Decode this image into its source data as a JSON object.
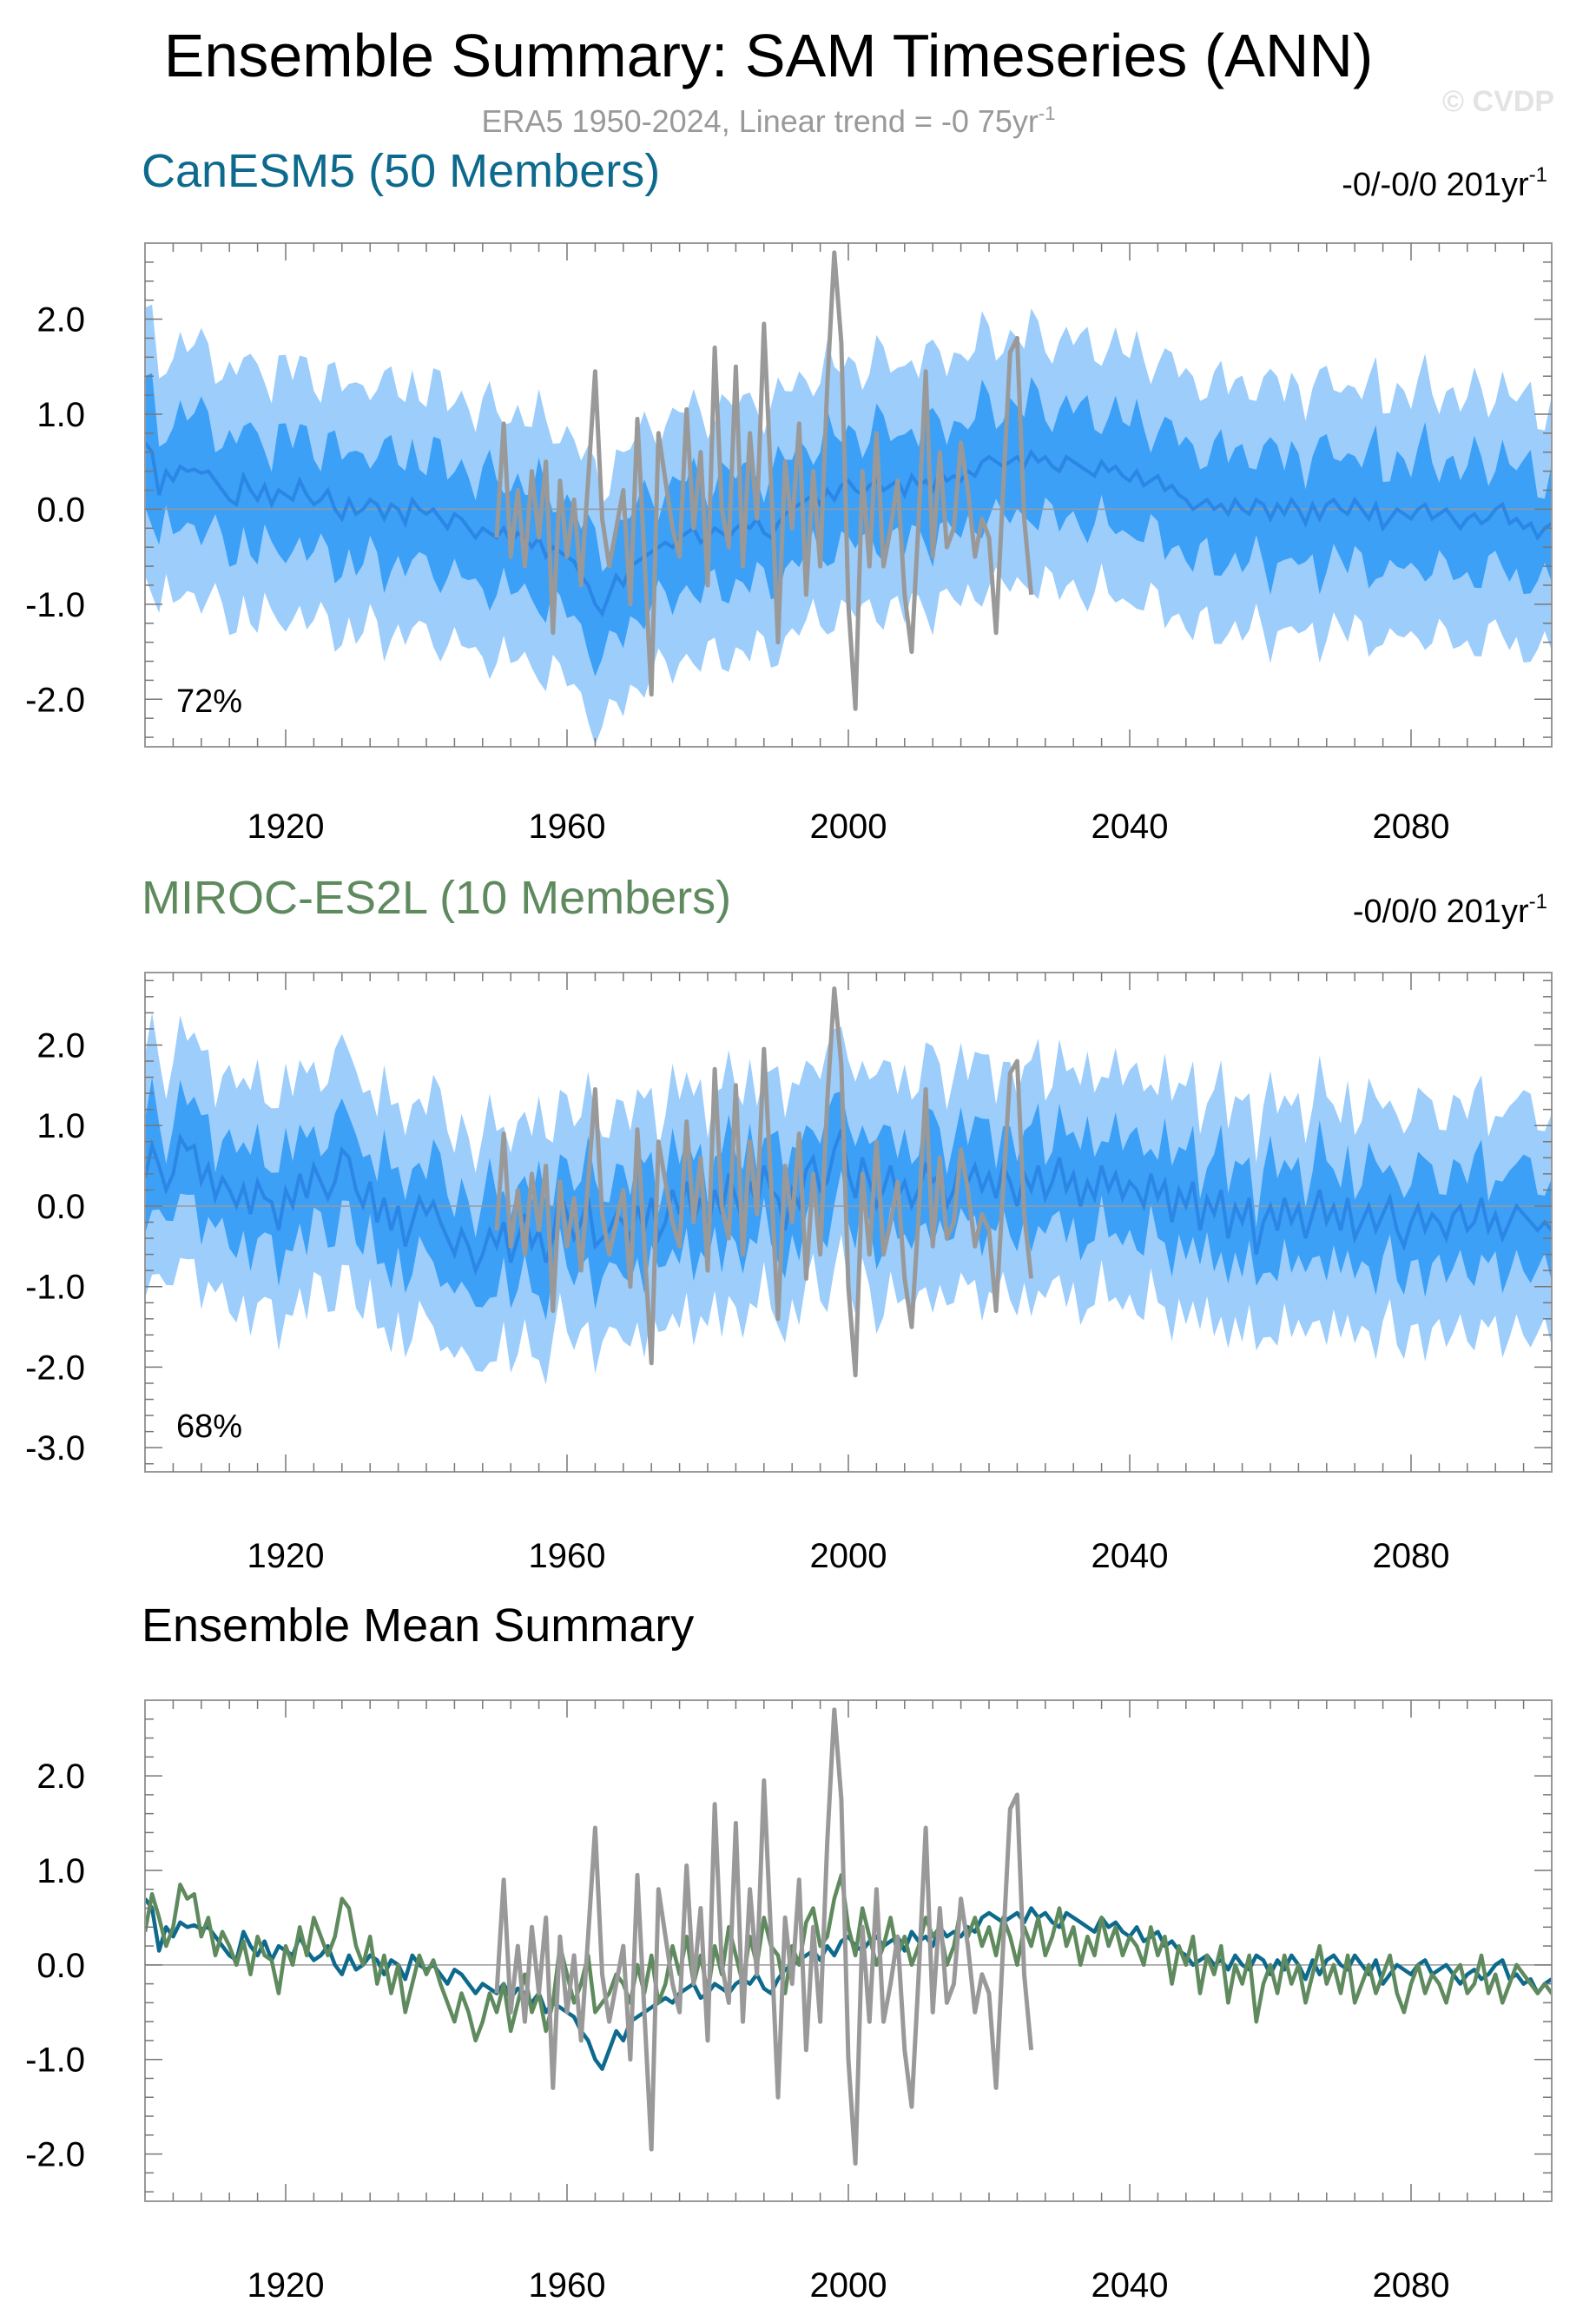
{
  "title": "Ensemble Summary: SAM Timeseries (ANN)",
  "subtitle": {
    "text": "ERA5 1950-2024, Linear trend = -0 75yr",
    "sup": "-1"
  },
  "watermark": "© CVDP",
  "colors": {
    "outer_band": "#9dcdfb",
    "inner_band": "#3ca0f7",
    "ens_mean_line": "#2b86e6",
    "observations": "#999999",
    "canesm5": "#0d6a8c",
    "miroc": "#5f8a5e",
    "zero_line": "#999999",
    "frame": "#999999"
  },
  "chart_data": [
    {
      "type": "area",
      "panel_title": "CanESM5 (50 Members)",
      "trend": {
        "text": "-0/-0/0 201yr",
        "sup": "-1"
      },
      "percent_label": "72%",
      "xlim": [
        1900,
        2100
      ],
      "ylim": [
        -2.5,
        2.8
      ],
      "x_ticks": [
        1920,
        1960,
        2000,
        2040,
        2080
      ],
      "y_ticks": [
        -2.0,
        -1.0,
        0.0,
        1.0,
        2.0
      ],
      "y_tick_labels": [
        "-2.0",
        "-1.0",
        "0.0",
        "1.0",
        "2.0"
      ],
      "grid": false,
      "series": [
        {
          "kind": "ensemble_spread",
          "x_start": 1900,
          "x_step": 1,
          "mean": [
            0.7,
            0.6,
            0.15,
            0.4,
            0.3,
            0.45,
            0.4,
            0.42,
            0.38,
            0.4,
            0.3,
            0.2,
            0.1,
            0.05,
            0.35,
            0.2,
            0.1,
            0.25,
            0.05,
            0.2,
            0.15,
            0.1,
            0.3,
            0.15,
            0.05,
            0.1,
            0.2,
            0.0,
            -0.1,
            0.1,
            -0.05,
            0.0,
            0.1,
            0.05,
            -0.1,
            0.05,
            0.0,
            -0.15,
            0.1,
            0.0,
            -0.05,
            0.0,
            -0.1,
            -0.2,
            -0.05,
            -0.1,
            -0.2,
            -0.3,
            -0.2,
            -0.25,
            -0.3,
            -0.2,
            -0.35,
            -0.25,
            -0.3,
            -0.4,
            -0.3,
            -0.5,
            -0.4,
            -0.45,
            -0.5,
            -0.55,
            -0.7,
            -0.8,
            -1.0,
            -1.1,
            -0.9,
            -0.7,
            -0.8,
            -0.6,
            -0.55,
            -0.5,
            -0.45,
            -0.4,
            -0.35,
            -0.4,
            -0.3,
            -0.25,
            -0.2,
            -0.35,
            -0.3,
            -0.2,
            -0.25,
            -0.3,
            -0.2,
            -0.15,
            -0.2,
            -0.1,
            -0.25,
            -0.3,
            -0.15,
            -0.05,
            0.0,
            0.05,
            0.1,
            0.15,
            0.05,
            0.2,
            0.1,
            0.25,
            0.3,
            0.2,
            0.15,
            0.25,
            0.3,
            0.2,
            0.25,
            0.3,
            0.15,
            0.35,
            0.25,
            0.3,
            0.2,
            0.4,
            0.3,
            0.35,
            0.3,
            0.4,
            0.35,
            0.5,
            0.55,
            0.5,
            0.45,
            0.5,
            0.55,
            0.45,
            0.6,
            0.5,
            0.55,
            0.45,
            0.4,
            0.55,
            0.5,
            0.45,
            0.4,
            0.35,
            0.5,
            0.4,
            0.45,
            0.35,
            0.3,
            0.4,
            0.25,
            0.3,
            0.35,
            0.2,
            0.25,
            0.15,
            0.1,
            0.0,
            0.05,
            0.1,
            0.0,
            0.05,
            -0.05,
            0.1,
            0.0,
            -0.05,
            0.1,
            0.05,
            -0.1,
            0.05,
            -0.05,
            0.1,
            0.0,
            -0.15,
            0.05,
            -0.1,
            0.05,
            0.1,
            0.0,
            -0.05,
            0.1,
            0.0,
            -0.1,
            0.05,
            -0.2,
            -0.1,
            0.0,
            -0.05,
            -0.1,
            0.0,
            0.05,
            -0.1,
            -0.05,
            0.0,
            -0.1,
            -0.2,
            -0.1,
            -0.05,
            -0.15,
            -0.1,
            0.0,
            0.05,
            -0.15,
            -0.1,
            -0.2,
            -0.15,
            -0.3,
            -0.2,
            -0.15,
            -0.25
          ],
          "inner_halfwidth": 0.58,
          "outer_halfwidth": 1.3
        },
        {
          "kind": "observations",
          "x_start": 1950,
          "x_step": 1,
          "values": [
            -0.3,
            0.9,
            -0.5,
            0.2,
            -0.6,
            0.4,
            -0.3,
            0.5,
            -1.3,
            0.3,
            -0.5,
            0.1,
            -0.8,
            0.3,
            1.45,
            -0.1,
            -0.6,
            -0.2,
            0.2,
            -1.0,
            0.95,
            -0.5,
            -1.95,
            0.8,
            0.3,
            -0.2,
            -0.5,
            1.05,
            -0.2,
            0.6,
            -0.8,
            1.7,
            0.0,
            -0.4,
            1.5,
            -0.6,
            0.8,
            -0.1,
            1.95,
            0.3,
            -1.4,
            0.5,
            -0.2,
            0.9,
            -0.9,
            0.4,
            -0.6,
            1.3,
            2.7,
            1.75,
            -1.0,
            -2.1,
            0.4,
            -0.6,
            0.8,
            -0.6,
            -0.2,
            0.3,
            -0.9,
            -1.5,
            -0.1,
            1.45,
            -0.5,
            0.6,
            -0.4,
            -0.2,
            0.7,
            0.2,
            -0.5,
            -0.1,
            -0.3,
            -1.3,
            0.2,
            1.65,
            1.8,
            -0.1,
            -0.9
          ]
        }
      ]
    },
    {
      "type": "area",
      "panel_title": "MIROC-ES2L (10 Members)",
      "trend": {
        "text": "-0/0/0 201yr",
        "sup": "-1"
      },
      "percent_label": "68%",
      "xlim": [
        1900,
        2100
      ],
      "ylim": [
        -3.3,
        2.9
      ],
      "x_ticks": [
        1920,
        1960,
        2000,
        2040,
        2080
      ],
      "y_ticks": [
        -3.0,
        -2.0,
        -1.0,
        0.0,
        1.0,
        2.0
      ],
      "y_tick_labels": [
        "-3.0",
        "-2.0",
        "-1.0",
        "0.0",
        "1.0",
        "2.0"
      ],
      "grid": false,
      "series": [
        {
          "kind": "ensemble_spread",
          "x_start": 1900,
          "x_step": 1,
          "mean": [
            0.35,
            0.75,
            0.5,
            0.2,
            0.4,
            0.85,
            0.7,
            0.75,
            0.3,
            0.5,
            0.1,
            0.35,
            0.2,
            0.0,
            0.25,
            -0.1,
            0.3,
            0.1,
            0.05,
            -0.3,
            0.2,
            0.0,
            0.4,
            0.1,
            0.5,
            0.3,
            0.1,
            0.3,
            0.7,
            0.6,
            0.2,
            0.0,
            0.3,
            -0.2,
            0.1,
            -0.3,
            0.0,
            -0.5,
            -0.2,
            0.1,
            -0.1,
            0.05,
            -0.2,
            -0.4,
            -0.6,
            -0.3,
            -0.5,
            -0.8,
            -0.6,
            -0.3,
            -0.5,
            -0.2,
            -0.7,
            -0.4,
            -0.1,
            -0.5,
            -0.3,
            -0.7,
            -0.4,
            0.2,
            -0.1,
            -0.4,
            -0.2,
            0.1,
            -0.5,
            -0.4,
            -0.3,
            -0.1,
            -0.2,
            -0.4,
            0.0,
            -0.3,
            0.1,
            -0.4,
            -0.2,
            0.2,
            -0.1,
            0.3,
            -0.2,
            0.1,
            -0.3,
            0.2,
            -0.1,
            0.4,
            0.1,
            -0.2,
            0.3,
            0.0,
            0.5,
            0.2,
            0.1,
            -0.3,
            0.2,
            0.0,
            0.45,
            0.6,
            0.2,
            0.3,
            0.7,
            0.95,
            0.4,
            0.1,
            0.6,
            0.3,
            0.0,
            0.2,
            0.5,
            0.1,
            0.3,
            0.0,
            0.2,
            0.5,
            0.3,
            0.4,
            0.0,
            0.2,
            0.6,
            0.3,
            0.5,
            0.2,
            0.4,
            0.1,
            0.5,
            0.3,
            0.0,
            0.4,
            0.2,
            0.5,
            0.1,
            0.3,
            0.6,
            0.2,
            0.4,
            0.0,
            0.3,
            0.1,
            0.5,
            0.2,
            0.4,
            0.1,
            0.3,
            0.2,
            0.0,
            0.4,
            0.1,
            0.3,
            -0.2,
            0.2,
            0.0,
            0.3,
            -0.3,
            0.1,
            -0.1,
            0.2,
            -0.4,
            0.0,
            -0.2,
            0.1,
            -0.6,
            -0.2,
            0.0,
            -0.3,
            0.1,
            -0.2,
            0.0,
            -0.4,
            -0.1,
            0.2,
            -0.2,
            0.0,
            -0.3,
            0.1,
            -0.4,
            -0.2,
            0.0,
            -0.3,
            -0.1,
            0.1,
            -0.3,
            -0.5,
            -0.2,
            0.0,
            -0.3,
            -0.1,
            -0.2,
            -0.4,
            -0.1,
            0.0,
            -0.3,
            -0.2,
            0.1,
            -0.3,
            -0.1,
            -0.4,
            -0.2,
            0.0,
            -0.1,
            -0.2,
            -0.3,
            -0.2,
            -0.3,
            -0.3
          ],
          "inner_halfwidth": 0.6,
          "outer_halfwidth": 1.4
        },
        {
          "kind": "observations",
          "x_start": 1950,
          "x_step": 1,
          "values": [
            -0.3,
            0.9,
            -0.5,
            0.2,
            -0.6,
            0.4,
            -0.3,
            0.5,
            -1.3,
            0.3,
            -0.5,
            0.1,
            -0.8,
            0.3,
            1.45,
            -0.1,
            -0.6,
            -0.2,
            0.2,
            -1.0,
            0.95,
            -0.5,
            -1.95,
            0.8,
            0.3,
            -0.2,
            -0.5,
            1.05,
            -0.2,
            0.6,
            -0.8,
            1.7,
            0.0,
            -0.4,
            1.5,
            -0.6,
            0.8,
            -0.1,
            1.95,
            0.3,
            -1.4,
            0.5,
            -0.2,
            0.9,
            -0.9,
            0.4,
            -0.6,
            1.3,
            2.7,
            1.75,
            -1.0,
            -2.1,
            0.4,
            -0.6,
            0.8,
            -0.6,
            -0.2,
            0.3,
            -0.9,
            -1.5,
            -0.1,
            1.45,
            -0.5,
            0.6,
            -0.4,
            -0.2,
            0.7,
            0.2,
            -0.5,
            -0.1,
            -0.3,
            -1.3,
            0.2,
            1.65,
            1.8,
            -0.1,
            -0.9
          ]
        }
      ]
    },
    {
      "type": "line",
      "panel_title": "Ensemble Mean Summary",
      "xlim": [
        1900,
        2100
      ],
      "ylim": [
        -2.5,
        2.8
      ],
      "x_ticks": [
        1920,
        1960,
        2000,
        2040,
        2080
      ],
      "y_ticks": [
        -2.0,
        -1.0,
        0.0,
        1.0,
        2.0
      ],
      "y_tick_labels": [
        "-2.0",
        "-1.0",
        "0.0",
        "1.0",
        "2.0"
      ],
      "grid": false,
      "series": [
        {
          "ref": 0,
          "style": "canesm5"
        },
        {
          "ref": 1,
          "style": "miroc"
        },
        {
          "ref_obs": 0,
          "style": "observations"
        }
      ]
    }
  ]
}
